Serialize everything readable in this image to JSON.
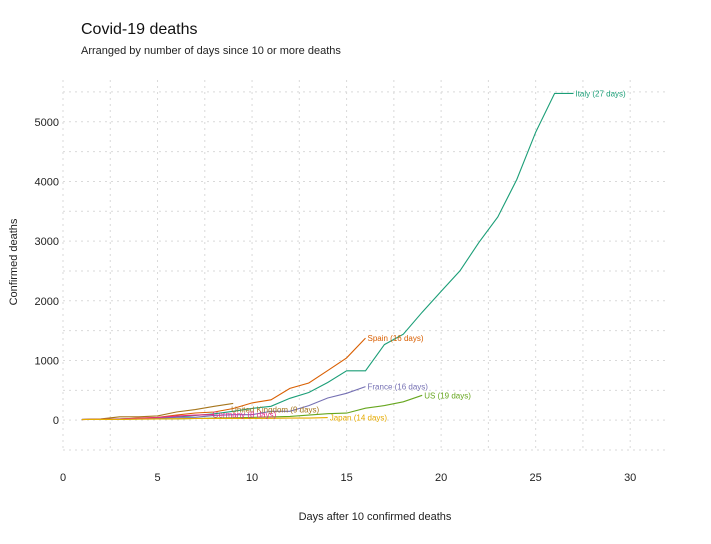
{
  "chart_data": {
    "type": "line",
    "title": "Covid-19 deaths",
    "subtitle": "Arranged by number of days since 10 or more deaths",
    "xlabel": "Days after 10 confirmed deaths",
    "ylabel": "Confirmed deaths",
    "xlim": [
      0,
      32
    ],
    "ylim": [
      -500,
      5700
    ],
    "x_ticks": [
      0,
      5,
      10,
      15,
      20,
      25,
      30
    ],
    "y_ticks": [
      0,
      1000,
      2000,
      3000,
      4000,
      5000
    ],
    "grid": true,
    "legend": "none",
    "series": [
      {
        "name": "Italy (27 days)",
        "color": "#1b9e77",
        "x": [
          1,
          2,
          3,
          4,
          5,
          6,
          7,
          8,
          9,
          10,
          11,
          12,
          13,
          14,
          15,
          16,
          17,
          18,
          19,
          20,
          21,
          22,
          23,
          24,
          25,
          26,
          27
        ],
        "y": [
          12,
          17,
          21,
          29,
          34,
          52,
          79,
          107,
          148,
          197,
          233,
          366,
          463,
          631,
          827,
          827,
          1266,
          1441,
          1809,
          2158,
          2503,
          2978,
          3405,
          4032,
          4825,
          5476,
          5476
        ]
      },
      {
        "name": "Spain (16 days)",
        "color": "#d95f02",
        "x": [
          1,
          2,
          3,
          4,
          5,
          6,
          7,
          8,
          9,
          10,
          11,
          12,
          13,
          14,
          15,
          16
        ],
        "y": [
          10,
          17,
          17,
          35,
          47,
          84,
          120,
          136,
          195,
          289,
          342,
          533,
          623,
          830,
          1043,
          1375
        ]
      },
      {
        "name": "France (16 days)",
        "color": "#7570b3",
        "x": [
          1,
          2,
          3,
          4,
          5,
          6,
          7,
          8,
          9,
          10,
          11,
          12,
          13,
          14,
          15,
          16
        ],
        "y": [
          11,
          11,
          19,
          19,
          33,
          48,
          48,
          79,
          91,
          91,
          148,
          148,
          244,
          372,
          450,
          562
        ]
      },
      {
        "name": "US (19 days)",
        "color": "#66a61e",
        "x": [
          1,
          2,
          3,
          4,
          5,
          6,
          7,
          8,
          9,
          10,
          11,
          12,
          13,
          14,
          15,
          16,
          17,
          18,
          19
        ],
        "y": [
          11,
          12,
          14,
          17,
          21,
          22,
          28,
          36,
          40,
          47,
          54,
          63,
          85,
          108,
          118,
          200,
          244,
          307,
          417
        ]
      },
      {
        "name": "United Kingdom (9 days)",
        "color": "#a6761d",
        "x": [
          1,
          2,
          3,
          4,
          5,
          6,
          7,
          8,
          9
        ],
        "y": [
          10,
          21,
          56,
          56,
          72,
          137,
          177,
          233,
          281
        ]
      },
      {
        "name": "Germany (8 days)",
        "color": "#e7298a",
        "x": [
          1,
          2,
          3,
          4,
          5,
          6,
          7,
          8
        ],
        "y": [
          13,
          13,
          20,
          31,
          44,
          68,
          84,
          94
        ]
      },
      {
        "name": "Japan (14 days)",
        "color": "#e6ab02",
        "x": [
          1,
          2,
          3,
          4,
          5,
          6,
          7,
          8,
          9,
          10,
          11,
          12,
          13,
          14
        ],
        "y": [
          11,
          12,
          12,
          17,
          21,
          22,
          28,
          28,
          29,
          29,
          31,
          35,
          35,
          43
        ]
      }
    ]
  }
}
